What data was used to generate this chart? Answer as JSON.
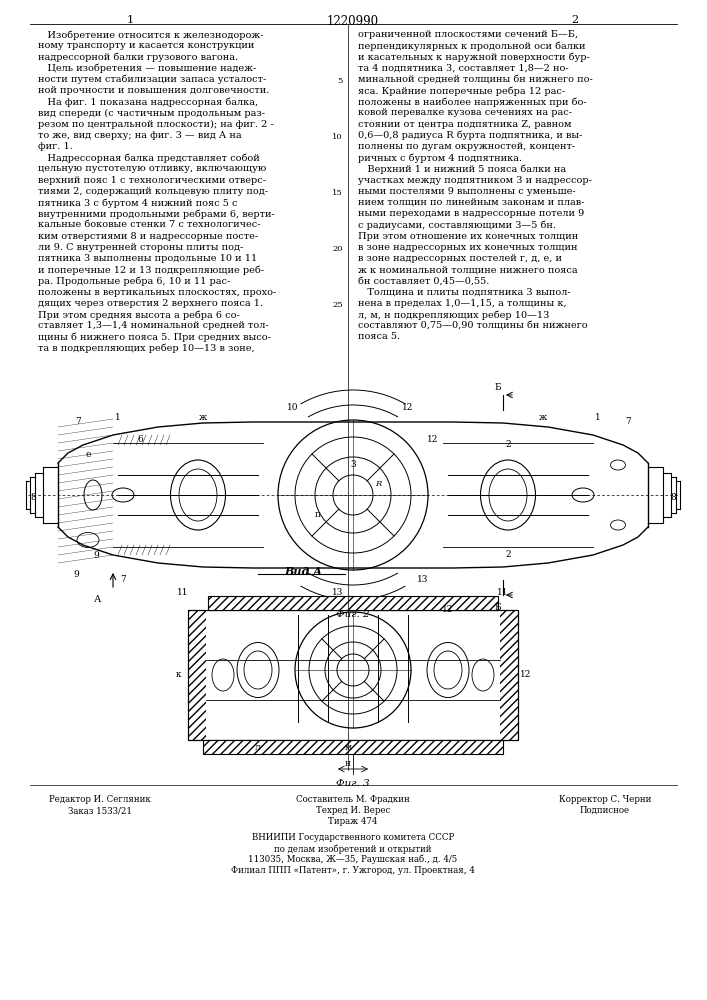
{
  "patent_number": "1220990",
  "page_left": "1",
  "page_right": "2",
  "background_color": "#ffffff",
  "fig_width": 7.07,
  "fig_height": 10.0,
  "dpi": 100,
  "left_col_lines": [
    "   Изобретение относится к железнодорож-",
    "ному транспорту и касается конструкции",
    "надрессорной балки грузового вагона.",
    "   Цель изобретения — повышение надеж-",
    "ности путем стабилизации запаса усталост-",
    "ной прочности и повышения долговечности.",
    "   На фиг. 1 показана надрессорная балка,",
    "вид спереди (с частичным продольным раз-",
    "резом по центральной плоскости); на фиг. 2 -",
    "то же, вид сверху; на фиг. 3 — вид А на",
    "фиг. 1.",
    "   Надрессорная балка представляет собой",
    "цельную пустотелую отливку, включающую",
    "верхний пояс 1 с технологическими отверс-",
    "тиями 2, содержащий кольцевую плиту под-",
    "пятника 3 с буртом 4 нижний пояс 5 с",
    "внутренними продольными ребрами 6, верти-",
    "кальные боковые стенки 7 с технологичес-",
    "ким отверстиями 8 и надрессорные посте-",
    "ли 9. С внутренней стороны плиты под-",
    "пятника 3 выполнены продольные 10 и 11",
    "и поперечные 12 и 13 подкрепляющие реб-",
    "ра. Продольные ребра 6, 10 и 11 рас-",
    "положены в вертикальных плоскостях, прохо-",
    "дящих через отверстия 2 верхнего пояса 1.",
    "При этом средняя высота а ребра 6 со-",
    "ставляет 1,3—1,4 номинальной средней тол-",
    "щины б нижнего пояса 5. При средних высо-",
    "та в подкрепляющих ребер 10—13 в зоне,"
  ],
  "right_col_lines": [
    "ограниченной плоскостями сечений Б—Б,",
    "перпендикулярных к продольной оси балки",
    "и касательных к наружной поверхности бур-",
    "та 4 подпятника 3, составляет 1,8—2 но-",
    "минальной средней толщины бн нижнего по-",
    "яса. Крайние поперечные ребра 12 рас-",
    "положены в наиболее напряженных при бо-",
    "ковой перевалке кузова сечениях на рас-",
    "стоянии от центра подпятника Z, равном",
    "0,6—0,8 радиуса R бурта подпятника, и вы-",
    "полнены по дугам окружностей, концент-",
    "ричных с буртом 4 подпятника.",
    "   Верхний 1 и нижний 5 пояса балки на",
    "участках между подпятником 3 и надрессор-",
    "ными постелями 9 выполнены с уменьше-",
    "нием толщин по линейным законам и плав-",
    "ными переходами в надрессорные потели 9",
    "с радиусами, составляющими 3—5 бн.",
    "При этом отношение их конечных толщин",
    "в зоне надрессорных их конечных толщин",
    "в зоне надрессорных постелей г, д, е, и",
    "ж к номинальной толщине нижнего пояса",
    "бн составляет 0,45—0,55.",
    "   Толщина и плиты подпятника 3 выпол-",
    "нена в пределах 1,0—1,15, а толщины к,",
    "л, м, н подкрепляющих ребер 10—13",
    "составляют 0,75—0,90 толщины бн нижнего",
    "пояса 5."
  ],
  "line_numbers": {
    "5": 4,
    "10": 9,
    "15": 14,
    "20": 19,
    "25": 24
  },
  "fig2_label": "Фиг. 2",
  "vid_a_label": "Вид А",
  "fig3_label": "Фиг. 3",
  "footer": {
    "editor": "Редактор И. Сегляник",
    "composer": "Составитель М. Фрадкин",
    "tech": "Техред И. Верес",
    "corrector": "Корректор С. Черни",
    "order": "Заказ 1533/21",
    "print_run": "Тираж 474",
    "subscription": "Подписное",
    "org1": "ВНИИПИ Государственного комитета СССР",
    "org2": "по делам изобретений и открытий",
    "addr1": "113035, Москва, Ж—35, Раушская наб., д. 4/5",
    "addr2": "Филиал ППП «Патент», г. Ужгород, ул. Проектная, 4"
  }
}
